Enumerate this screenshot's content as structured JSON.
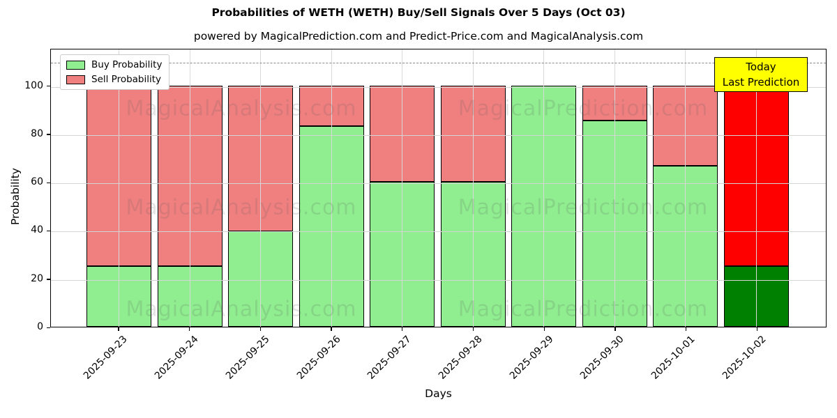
{
  "title": "Probabilities of WETH (WETH) Buy/Sell Signals Over 5 Days (Oct 03)",
  "subtitle": "powered by MagicalPrediction.com and Predict-Price.com and MagicalAnalysis.com",
  "annotation_box": {
    "line1": "Today",
    "line2": "Last Prediction",
    "bg_color": "#ffff00"
  },
  "legend": {
    "position": "upper left",
    "items": [
      {
        "label": "Buy Probability",
        "color": "#90ee90"
      },
      {
        "label": "Sell Probability",
        "color": "#f08080"
      }
    ]
  },
  "watermarks": {
    "left_text": "MagicalAnalysis.com",
    "right_text": "MagicalPrediction.com"
  },
  "chart_data": {
    "type": "bar",
    "stacked": true,
    "title": "Probabilities of WETH (WETH) Buy/Sell Signals Over 5 Days (Oct 03)",
    "xlabel": "Days",
    "ylabel": "Probability",
    "categories": [
      "2025-09-23",
      "2025-09-24",
      "2025-09-25",
      "2025-09-26",
      "2025-09-27",
      "2025-09-28",
      "2025-09-29",
      "2025-09-30",
      "2025-10-01",
      "2025-10-02"
    ],
    "series": [
      {
        "name": "Buy Probability",
        "color": "#90ee90",
        "last_bar_color": "#008000",
        "values": [
          25,
          25,
          39.5,
          83.3,
          60,
          60,
          100,
          85.5,
          66.7,
          25
        ]
      },
      {
        "name": "Sell Probability",
        "color": "#f08080",
        "last_bar_color": "#ff0000",
        "values": [
          75,
          75,
          60.5,
          16.7,
          40,
          40,
          0,
          14.5,
          33.3,
          75
        ]
      }
    ],
    "yticks": [
      0,
      20,
      40,
      60,
      80,
      100
    ],
    "ylim": [
      0,
      115.5
    ],
    "dashed_line_y": 110,
    "grid": true,
    "highlight_last_bar": true
  }
}
